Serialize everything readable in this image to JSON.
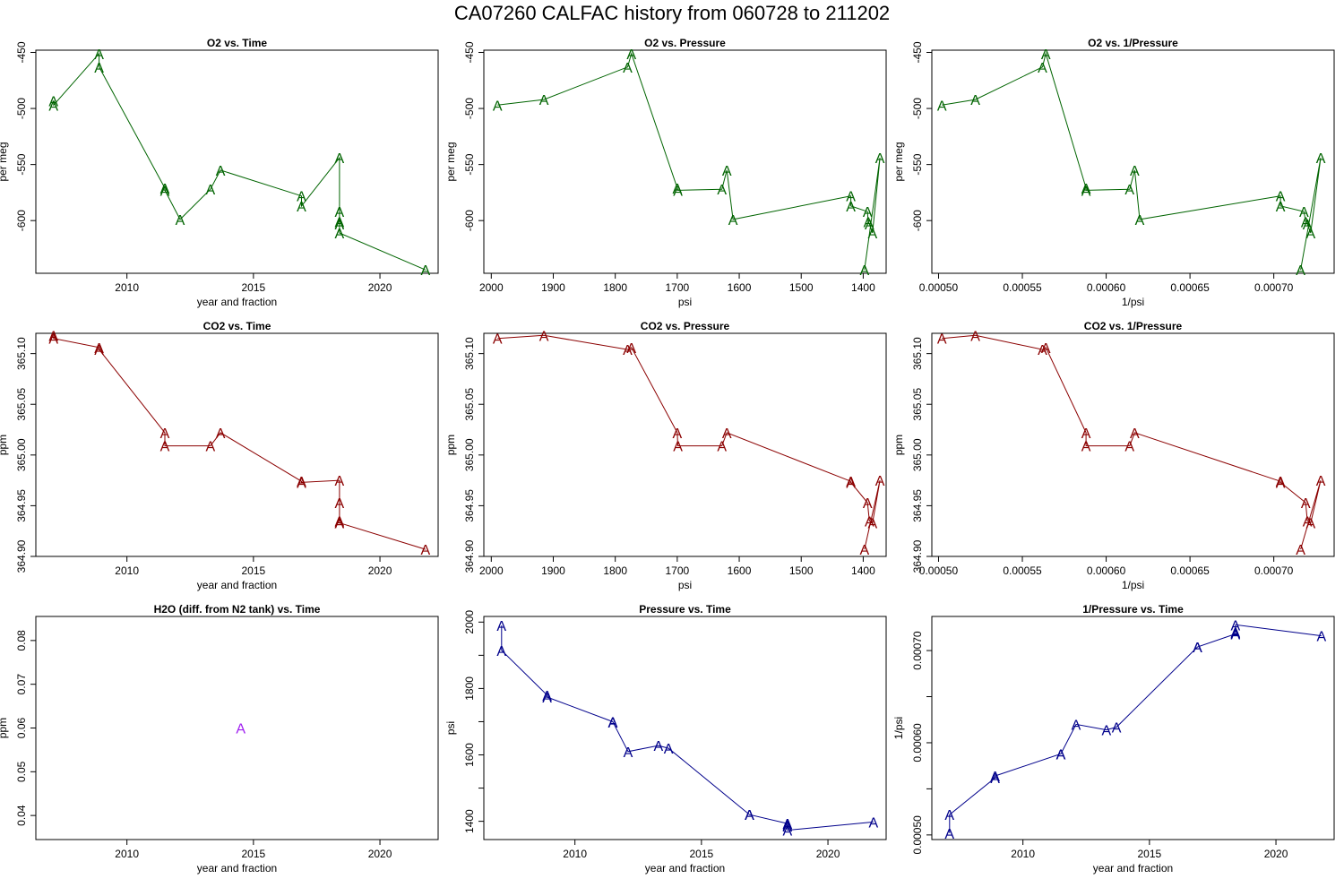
{
  "page_title": "CA07260   CALFAC history from  060728  to  211202",
  "chart_data": [
    {
      "type": "line",
      "title": "O2 vs. Time",
      "xlabel": "year and fraction",
      "ylabel": "per meg",
      "color": "#006400",
      "xlim": [
        2006.4,
        2022.3
      ],
      "ylim": [
        -647,
        -448
      ],
      "xticks": [
        2010,
        2015,
        2020
      ],
      "xtick_labels": [
        "2010",
        "2015",
        "2020"
      ],
      "yticks": [
        -450,
        -500,
        -550,
        -600
      ],
      "ytick_labels": [
        "-450",
        "-500",
        "-550",
        "-600"
      ],
      "marker": "A",
      "x": [
        2007.1,
        2007.1,
        2008.9,
        2008.9,
        2011.5,
        2011.5,
        2012.1,
        2013.3,
        2013.7,
        2016.9,
        2016.9,
        2018.4,
        2018.4,
        2018.4,
        2018.4,
        2018.4,
        2021.8
      ],
      "y": [
        -493,
        -497,
        -451,
        -463,
        -571,
        -573,
        -599,
        -572,
        -555,
        -578,
        -587,
        -544,
        -592,
        -601,
        -603,
        -611,
        -644
      ]
    },
    {
      "type": "line",
      "title": "O2 vs. Pressure",
      "xlabel": "psi",
      "ylabel": "per meg",
      "color": "#006400",
      "xlim": [
        2012,
        1363
      ],
      "ylim": [
        -647,
        -448
      ],
      "xticks": [
        2000,
        1900,
        1800,
        1700,
        1600,
        1500,
        1400
      ],
      "xtick_labels": [
        "2000",
        "1900",
        "1800",
        "1700",
        "1600",
        "1500",
        "1400"
      ],
      "yticks": [
        -450,
        -500,
        -550,
        -600
      ],
      "ytick_labels": [
        "-450",
        "-500",
        "-550",
        "-600"
      ],
      "marker": "A",
      "x": [
        1990,
        1915,
        1780,
        1774,
        1700,
        1699,
        1628,
        1620,
        1610,
        1420,
        1420,
        1393,
        1392,
        1390,
        1385,
        1373,
        1398
      ],
      "y": [
        -497,
        -492,
        -463,
        -451,
        -571,
        -573,
        -572,
        -555,
        -599,
        -578,
        -587,
        -592,
        -601,
        -603,
        -611,
        -544,
        -644
      ]
    },
    {
      "type": "line",
      "title": "O2 vs. 1/Pressure",
      "xlabel": "1/psi",
      "ylabel": "per meg",
      "color": "#006400",
      "xlim": [
        0.000496,
        0.000736
      ],
      "ylim": [
        -647,
        -448
      ],
      "xticks": [
        0.0005,
        0.00055,
        0.0006,
        0.00065,
        0.0007
      ],
      "xtick_labels": [
        "0.00050",
        "0.00055",
        "0.00060",
        "0.00065",
        "0.00070"
      ],
      "yticks": [
        -450,
        -500,
        -550,
        -600
      ],
      "ytick_labels": [
        "-450",
        "-500",
        "-550",
        "-600"
      ],
      "marker": "A",
      "x": [
        0.000502,
        0.000522,
        0.000562,
        0.000564,
        0.000588,
        0.000588,
        0.000614,
        0.000617,
        0.00062,
        0.000704,
        0.000704,
        0.000718,
        0.000719,
        0.00072,
        0.000722,
        0.000728,
        0.000716
      ],
      "y": [
        -497,
        -492,
        -463,
        -451,
        -571,
        -573,
        -572,
        -555,
        -599,
        -578,
        -587,
        -592,
        -601,
        -603,
        -611,
        -544,
        -644
      ]
    },
    {
      "type": "line",
      "title": "CO2 vs. Time",
      "xlabel": "year and fraction",
      "ylabel": "ppm",
      "color": "#8B0000",
      "xlim": [
        2006.4,
        2022.3
      ],
      "ylim": [
        364.9,
        365.12
      ],
      "xticks": [
        2010,
        2015,
        2020
      ],
      "xtick_labels": [
        "2010",
        "2015",
        "2020"
      ],
      "yticks": [
        364.9,
        364.95,
        365.0,
        365.05,
        365.1
      ],
      "ytick_labels": [
        "364.90",
        "364.95",
        "365.00",
        "365.05",
        "365.10"
      ],
      "marker": "A",
      "x": [
        2007.1,
        2007.1,
        2008.9,
        2008.9,
        2011.5,
        2011.5,
        2013.3,
        2013.7,
        2016.9,
        2016.9,
        2018.4,
        2018.4,
        2018.4,
        2018.4,
        2018.4,
        2021.8
      ],
      "y": [
        365.118,
        365.115,
        365.106,
        365.104,
        365.022,
        365.009,
        365.009,
        365.022,
        364.974,
        364.973,
        364.975,
        364.953,
        364.935,
        364.933,
        364.933,
        364.907
      ]
    },
    {
      "type": "line",
      "title": "CO2 vs. Pressure",
      "xlabel": "psi",
      "ylabel": "ppm",
      "color": "#8B0000",
      "xlim": [
        2012,
        1363
      ],
      "ylim": [
        364.9,
        365.12
      ],
      "xticks": [
        2000,
        1900,
        1800,
        1700,
        1600,
        1500,
        1400
      ],
      "xtick_labels": [
        "2000",
        "1900",
        "1800",
        "1700",
        "1600",
        "1500",
        "1400"
      ],
      "yticks": [
        364.9,
        364.95,
        365.0,
        365.05,
        365.1
      ],
      "ytick_labels": [
        "364.90",
        "364.95",
        "365.00",
        "365.05",
        "365.10"
      ],
      "marker": "A",
      "x": [
        1990,
        1915,
        1780,
        1774,
        1700,
        1699,
        1628,
        1620,
        1420,
        1420,
        1393,
        1390,
        1385,
        1373,
        1398
      ],
      "y": [
        365.115,
        365.118,
        365.104,
        365.106,
        365.022,
        365.009,
        365.009,
        365.022,
        364.974,
        364.973,
        364.953,
        364.935,
        364.933,
        364.975,
        364.907
      ]
    },
    {
      "type": "line",
      "title": "CO2 vs. 1/Pressure",
      "xlabel": "1/psi",
      "ylabel": "ppm",
      "color": "#8B0000",
      "xlim": [
        0.000496,
        0.000736
      ],
      "ylim": [
        364.9,
        365.12
      ],
      "xticks": [
        0.0005,
        0.00055,
        0.0006,
        0.00065,
        0.0007
      ],
      "xtick_labels": [
        "0.00050",
        "0.00055",
        "0.00060",
        "0.00065",
        "0.00070"
      ],
      "yticks": [
        364.9,
        364.95,
        365.0,
        365.05,
        365.1
      ],
      "ytick_labels": [
        "364.90",
        "364.95",
        "365.00",
        "365.05",
        "365.10"
      ],
      "marker": "A",
      "x": [
        0.000502,
        0.000522,
        0.000562,
        0.000564,
        0.000588,
        0.000588,
        0.000614,
        0.000617,
        0.000704,
        0.000704,
        0.000719,
        0.00072,
        0.000722,
        0.000728,
        0.000716
      ],
      "y": [
        365.115,
        365.118,
        365.104,
        365.106,
        365.022,
        365.009,
        365.009,
        365.022,
        364.974,
        364.973,
        364.953,
        364.935,
        364.933,
        364.975,
        364.907
      ]
    },
    {
      "type": "scatter",
      "title": "H2O (diff. from N2 tank) vs. Time",
      "xlabel": "year and fraction",
      "ylabel": "ppm",
      "color": "#A020F0",
      "xlim": [
        2006.4,
        2022.3
      ],
      "ylim": [
        0.0345,
        0.0855
      ],
      "xticks": [
        2010,
        2015,
        2020
      ],
      "xtick_labels": [
        "2010",
        "2015",
        "2020"
      ],
      "yticks": [
        0.04,
        0.05,
        0.06,
        0.07,
        0.08
      ],
      "ytick_labels": [
        "0.04",
        "0.05",
        "0.06",
        "0.07",
        "0.08"
      ],
      "marker": "A",
      "connect": false,
      "x": [
        2014.5
      ],
      "y": [
        0.06
      ]
    },
    {
      "type": "line",
      "title": "Pressure vs. Time",
      "xlabel": "year and fraction",
      "ylabel": "psi",
      "color": "#00008B",
      "xlim": [
        2006.4,
        2022.3
      ],
      "ylim": [
        1345,
        2017
      ],
      "xticks": [
        2010,
        2015,
        2020
      ],
      "xtick_labels": [
        "2010",
        "2015",
        "2020"
      ],
      "yticks": [
        1400,
        1600,
        1800,
        2000
      ],
      "ytick_labels": [
        "1400",
        "1600",
        "1800",
        "2000"
      ],
      "minor_yticks": [
        1500,
        1700,
        1900
      ],
      "marker": "A",
      "x": [
        2007.1,
        2007.1,
        2008.9,
        2008.9,
        2011.5,
        2011.5,
        2012.1,
        2013.3,
        2013.7,
        2016.9,
        2016.9,
        2018.4,
        2018.4,
        2018.4,
        2018.4,
        2021.8
      ],
      "y": [
        1990,
        1915,
        1780,
        1774,
        1700,
        1699,
        1610,
        1628,
        1620,
        1420,
        1420,
        1393,
        1390,
        1385,
        1373,
        1398
      ]
    },
    {
      "type": "line",
      "title": "1/Pressure vs. Time",
      "xlabel": "year and fraction",
      "ylabel": "1/psi",
      "color": "#00008B",
      "xlim": [
        2006.4,
        2022.3
      ],
      "ylim": [
        0.000495,
        0.000737
      ],
      "xticks": [
        2010,
        2015,
        2020
      ],
      "xtick_labels": [
        "2010",
        "2015",
        "2020"
      ],
      "yticks": [
        0.0005,
        0.0006,
        0.0007
      ],
      "ytick_labels": [
        "0.00050",
        "0.00060",
        "0.00070"
      ],
      "minor_yticks": [
        0.00055,
        0.00065
      ],
      "marker": "A",
      "x": [
        2007.1,
        2007.1,
        2008.9,
        2008.9,
        2011.5,
        2011.5,
        2012.1,
        2013.3,
        2013.7,
        2016.9,
        2016.9,
        2018.4,
        2018.4,
        2018.4,
        2018.4,
        2021.8
      ],
      "y": [
        0.000502,
        0.000522,
        0.000562,
        0.000564,
        0.000588,
        0.000588,
        0.00062,
        0.000614,
        0.000617,
        0.000704,
        0.000704,
        0.000718,
        0.000719,
        0.00072,
        0.000728,
        0.000716
      ]
    }
  ]
}
